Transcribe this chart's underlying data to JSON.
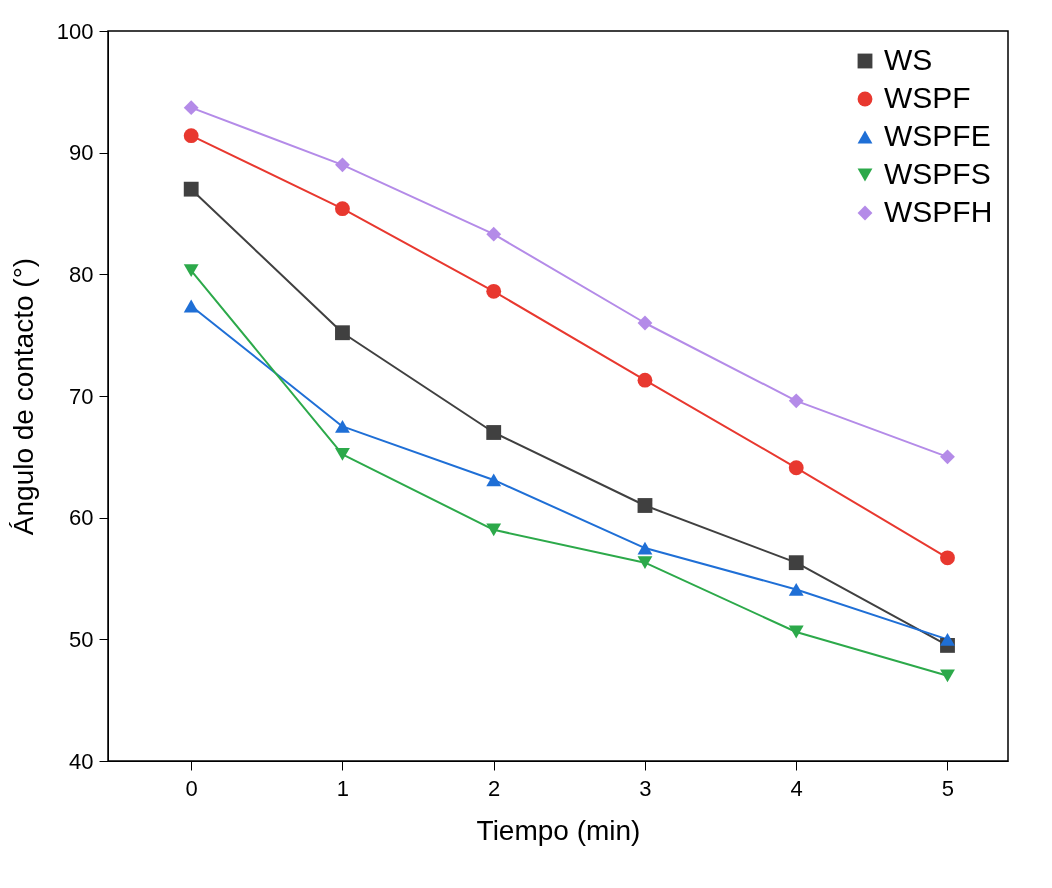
{
  "chart_data": {
    "type": "line",
    "xlabel": "Tiempo (min)",
    "ylabel": "Ángulo de contacto (°)",
    "x": [
      0,
      1,
      2,
      3,
      4,
      5
    ],
    "xlim": [
      -0.55,
      5.4
    ],
    "xticks": [
      0,
      1,
      2,
      3,
      4,
      5
    ],
    "ylim": [
      40,
      100
    ],
    "yticks": [
      40,
      50,
      60,
      70,
      80,
      90,
      100
    ],
    "grid": false,
    "legend": "top right",
    "line_style": "solid",
    "series": [
      {
        "name": "WS",
        "color": "#404040",
        "marker": "square",
        "values": [
          87.0,
          75.2,
          67.0,
          61.0,
          56.3,
          49.5
        ]
      },
      {
        "name": "WSPF",
        "color": "#e8382f",
        "marker": "circle",
        "values": [
          91.4,
          85.4,
          78.6,
          71.3,
          64.1,
          56.7
        ]
      },
      {
        "name": "WSPFE",
        "color": "#1f6fd6",
        "marker": "triangle",
        "values": [
          77.4,
          67.5,
          63.1,
          57.5,
          54.1,
          50.0
        ]
      },
      {
        "name": "WSPFS",
        "color": "#2ca94a",
        "marker": "triangle-down",
        "values": [
          80.3,
          65.2,
          59.0,
          56.3,
          50.6,
          47.0
        ]
      },
      {
        "name": "WSPFH",
        "color": "#b48be8",
        "marker": "diamond",
        "values": [
          93.7,
          89.0,
          83.3,
          76.0,
          69.6,
          65.0
        ]
      }
    ]
  }
}
